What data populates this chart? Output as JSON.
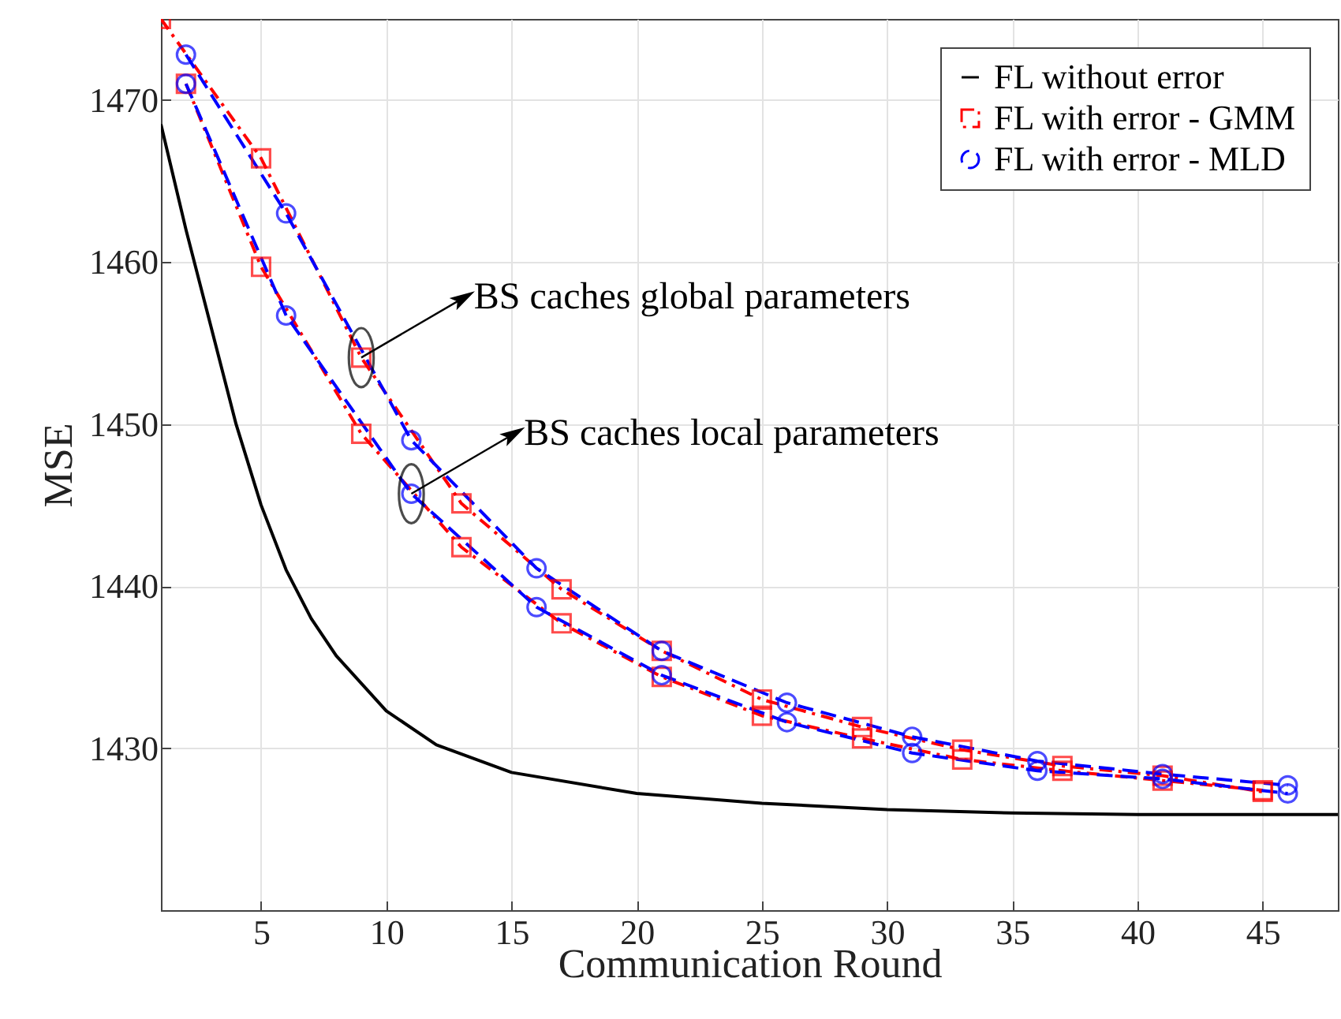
{
  "chart_data": {
    "type": "line",
    "xlabel": "Communication Round",
    "ylabel": "MSE",
    "xlim": [
      1,
      48
    ],
    "xticks": [
      5,
      10,
      15,
      20,
      25,
      30,
      35,
      40,
      45
    ],
    "ylim": [
      1420,
      1475
    ],
    "yticks": [
      1430,
      1440,
      1450,
      1460,
      1470
    ],
    "grid": true,
    "legend": "top right",
    "series": [
      {
        "name": "FL without error",
        "color": "#000000",
        "marker": "none",
        "line_style": "solid",
        "x": [
          1,
          2,
          3,
          4,
          5,
          6,
          7,
          8,
          10,
          12,
          15,
          20,
          25,
          30,
          35,
          40,
          48
        ],
        "values": [
          1468.5,
          1462,
          1456,
          1450,
          1445,
          1441,
          1438,
          1435.7,
          1432.3,
          1430.2,
          1428.5,
          1427.2,
          1426.6,
          1426.2,
          1426.0,
          1425.9,
          1425.9
        ]
      },
      {
        "name": "FL with error - GMM",
        "color": "#ff0000",
        "marker": "square",
        "line_style": "dashdot",
        "x": [
          1,
          5,
          9,
          13,
          17,
          21,
          25,
          29,
          33,
          37,
          41,
          45
        ],
        "values": [
          1475,
          1466.4,
          1454.1,
          1445.1,
          1439.8,
          1436.0,
          1433.0,
          1431.3,
          1429.9,
          1428.9,
          1428.3,
          1427.3
        ]
      },
      {
        "name": "FL with error - MLD",
        "color": "#0000ff",
        "marker": "circle",
        "line_style": "dashed",
        "x": [
          2,
          6,
          11,
          16,
          21,
          26,
          31,
          36,
          41,
          46
        ],
        "values": [
          1472.8,
          1463.0,
          1449.0,
          1441.1,
          1436.0,
          1432.8,
          1430.7,
          1429.2,
          1428.4,
          1427.7
        ]
      },
      {
        "color": "#ff0000",
        "marker": "square",
        "line_style": "dashdot",
        "x": [
          2,
          5,
          9,
          13,
          17,
          21,
          25,
          29,
          33,
          37,
          41,
          45
        ],
        "values": [
          1471.0,
          1459.7,
          1449.4,
          1442.4,
          1437.7,
          1434.4,
          1432.0,
          1430.6,
          1429.3,
          1428.6,
          1428.0,
          1427.4
        ]
      },
      {
        "color": "#0000ff",
        "marker": "circle",
        "line_style": "dashed",
        "x": [
          2,
          6,
          11,
          16,
          21,
          26,
          31,
          36,
          41,
          46
        ],
        "values": [
          1471.0,
          1456.7,
          1445.7,
          1438.7,
          1434.5,
          1431.6,
          1429.7,
          1428.6,
          1428.1,
          1427.2
        ]
      }
    ],
    "annotations": [
      {
        "text": "BS caches global parameters",
        "x": 9,
        "y": 1454.1
      },
      {
        "text": "BS caches local parameters",
        "x": 11,
        "y": 1445.7
      }
    ]
  }
}
